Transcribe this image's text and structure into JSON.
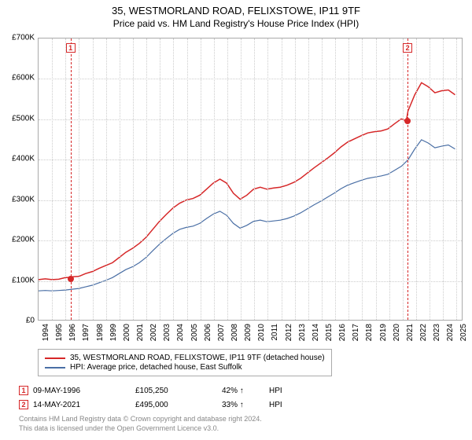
{
  "title": {
    "line1": "35, WESTMORLAND ROAD, FELIXSTOWE, IP11 9TF",
    "line2": "Price paid vs. HM Land Registry's House Price Index (HPI)"
  },
  "chart": {
    "type": "line",
    "background_color": "#ffffff",
    "grid_color": "#cccccc",
    "border_color": "#aaaaaa",
    "x_range": [
      1994,
      2025.5
    ],
    "x_ticks": [
      1994,
      1995,
      1996,
      1997,
      1998,
      1999,
      2000,
      2001,
      2002,
      2003,
      2004,
      2005,
      2006,
      2007,
      2008,
      2009,
      2010,
      2011,
      2012,
      2013,
      2014,
      2015,
      2016,
      2017,
      2018,
      2019,
      2020,
      2021,
      2022,
      2023,
      2024,
      2025
    ],
    "x_tick_fontsize": 10,
    "y_range": [
      0,
      700
    ],
    "y_ticks": [
      0,
      100,
      200,
      300,
      400,
      500,
      600,
      700
    ],
    "y_tick_labels": [
      "£0",
      "£100K",
      "£200K",
      "£300K",
      "£400K",
      "£500K",
      "£600K",
      "£700K"
    ],
    "y_tick_fontsize": 10,
    "series": [
      {
        "name": "Price paid",
        "color": "#d62728",
        "line_width": 1.5,
        "points": [
          [
            1994.0,
            100
          ],
          [
            1994.5,
            102
          ],
          [
            1995.0,
            100
          ],
          [
            1995.5,
            101
          ],
          [
            1996.0,
            105
          ],
          [
            1996.37,
            105.25
          ],
          [
            1996.5,
            107
          ],
          [
            1997.0,
            108
          ],
          [
            1997.5,
            115
          ],
          [
            1998.0,
            120
          ],
          [
            1998.5,
            128
          ],
          [
            1999.0,
            135
          ],
          [
            1999.5,
            142
          ],
          [
            2000.0,
            155
          ],
          [
            2000.5,
            168
          ],
          [
            2001.0,
            178
          ],
          [
            2001.5,
            190
          ],
          [
            2002.0,
            205
          ],
          [
            2002.5,
            225
          ],
          [
            2003.0,
            245
          ],
          [
            2003.5,
            262
          ],
          [
            2004.0,
            278
          ],
          [
            2004.5,
            290
          ],
          [
            2005.0,
            298
          ],
          [
            2005.5,
            302
          ],
          [
            2006.0,
            310
          ],
          [
            2006.5,
            325
          ],
          [
            2007.0,
            340
          ],
          [
            2007.5,
            350
          ],
          [
            2008.0,
            340
          ],
          [
            2008.5,
            315
          ],
          [
            2009.0,
            300
          ],
          [
            2009.5,
            310
          ],
          [
            2010.0,
            325
          ],
          [
            2010.5,
            330
          ],
          [
            2011.0,
            325
          ],
          [
            2011.5,
            328
          ],
          [
            2012.0,
            330
          ],
          [
            2012.5,
            335
          ],
          [
            2013.0,
            342
          ],
          [
            2013.5,
            352
          ],
          [
            2014.0,
            365
          ],
          [
            2014.5,
            378
          ],
          [
            2015.0,
            390
          ],
          [
            2015.5,
            402
          ],
          [
            2016.0,
            415
          ],
          [
            2016.5,
            430
          ],
          [
            2017.0,
            442
          ],
          [
            2017.5,
            450
          ],
          [
            2018.0,
            458
          ],
          [
            2018.5,
            465
          ],
          [
            2019.0,
            468
          ],
          [
            2019.5,
            470
          ],
          [
            2020.0,
            475
          ],
          [
            2020.5,
            488
          ],
          [
            2021.0,
            500
          ],
          [
            2021.37,
            495
          ],
          [
            2021.5,
            520
          ],
          [
            2022.0,
            560
          ],
          [
            2022.5,
            590
          ],
          [
            2023.0,
            580
          ],
          [
            2023.5,
            565
          ],
          [
            2024.0,
            570
          ],
          [
            2024.5,
            572
          ],
          [
            2025.0,
            560
          ]
        ]
      },
      {
        "name": "HPI",
        "color": "#4a6fa5",
        "line_width": 1.2,
        "points": [
          [
            1994.0,
            72
          ],
          [
            1994.5,
            73
          ],
          [
            1995.0,
            72
          ],
          [
            1995.5,
            73
          ],
          [
            1996.0,
            74
          ],
          [
            1996.5,
            76
          ],
          [
            1997.0,
            78
          ],
          [
            1997.5,
            82
          ],
          [
            1998.0,
            86
          ],
          [
            1998.5,
            92
          ],
          [
            1999.0,
            98
          ],
          [
            1999.5,
            105
          ],
          [
            2000.0,
            115
          ],
          [
            2000.5,
            125
          ],
          [
            2001.0,
            132
          ],
          [
            2001.5,
            142
          ],
          [
            2002.0,
            155
          ],
          [
            2002.5,
            172
          ],
          [
            2003.0,
            188
          ],
          [
            2003.5,
            202
          ],
          [
            2004.0,
            215
          ],
          [
            2004.5,
            225
          ],
          [
            2005.0,
            230
          ],
          [
            2005.5,
            233
          ],
          [
            2006.0,
            240
          ],
          [
            2006.5,
            252
          ],
          [
            2007.0,
            263
          ],
          [
            2007.5,
            270
          ],
          [
            2008.0,
            260
          ],
          [
            2008.5,
            240
          ],
          [
            2009.0,
            228
          ],
          [
            2009.5,
            235
          ],
          [
            2010.0,
            245
          ],
          [
            2010.5,
            248
          ],
          [
            2011.0,
            244
          ],
          [
            2011.5,
            246
          ],
          [
            2012.0,
            248
          ],
          [
            2012.5,
            252
          ],
          [
            2013.0,
            258
          ],
          [
            2013.5,
            266
          ],
          [
            2014.0,
            276
          ],
          [
            2014.5,
            286
          ],
          [
            2015.0,
            295
          ],
          [
            2015.5,
            305
          ],
          [
            2016.0,
            315
          ],
          [
            2016.5,
            326
          ],
          [
            2017.0,
            335
          ],
          [
            2017.5,
            341
          ],
          [
            2018.0,
            347
          ],
          [
            2018.5,
            352
          ],
          [
            2019.0,
            355
          ],
          [
            2019.5,
            358
          ],
          [
            2020.0,
            362
          ],
          [
            2020.5,
            372
          ],
          [
            2021.0,
            382
          ],
          [
            2021.5,
            398
          ],
          [
            2022.0,
            425
          ],
          [
            2022.5,
            448
          ],
          [
            2023.0,
            440
          ],
          [
            2023.5,
            428
          ],
          [
            2024.0,
            432
          ],
          [
            2024.5,
            435
          ],
          [
            2025.0,
            425
          ]
        ]
      }
    ],
    "markers": [
      {
        "id": "1",
        "x": 1996.37,
        "color": "#d62728",
        "dot_y": 105.25
      },
      {
        "id": "2",
        "x": 2021.37,
        "color": "#d62728",
        "dot_y": 495
      }
    ]
  },
  "legend": {
    "items": [
      {
        "color": "#d62728",
        "label": "35, WESTMORLAND ROAD, FELIXSTOWE, IP11 9TF (detached house)"
      },
      {
        "color": "#4a6fa5",
        "label": "HPI: Average price, detached house, East Suffolk"
      }
    ]
  },
  "transactions": [
    {
      "id": "1",
      "color": "#d62728",
      "date": "09-MAY-1996",
      "price": "£105,250",
      "pct": "42%",
      "arrow": "↑",
      "suffix": "HPI"
    },
    {
      "id": "2",
      "color": "#d62728",
      "date": "14-MAY-2021",
      "price": "£495,000",
      "pct": "33%",
      "arrow": "↑",
      "suffix": "HPI"
    }
  ],
  "footer": {
    "line1": "Contains HM Land Registry data © Crown copyright and database right 2024.",
    "line2": "This data is licensed under the Open Government Licence v3.0."
  }
}
